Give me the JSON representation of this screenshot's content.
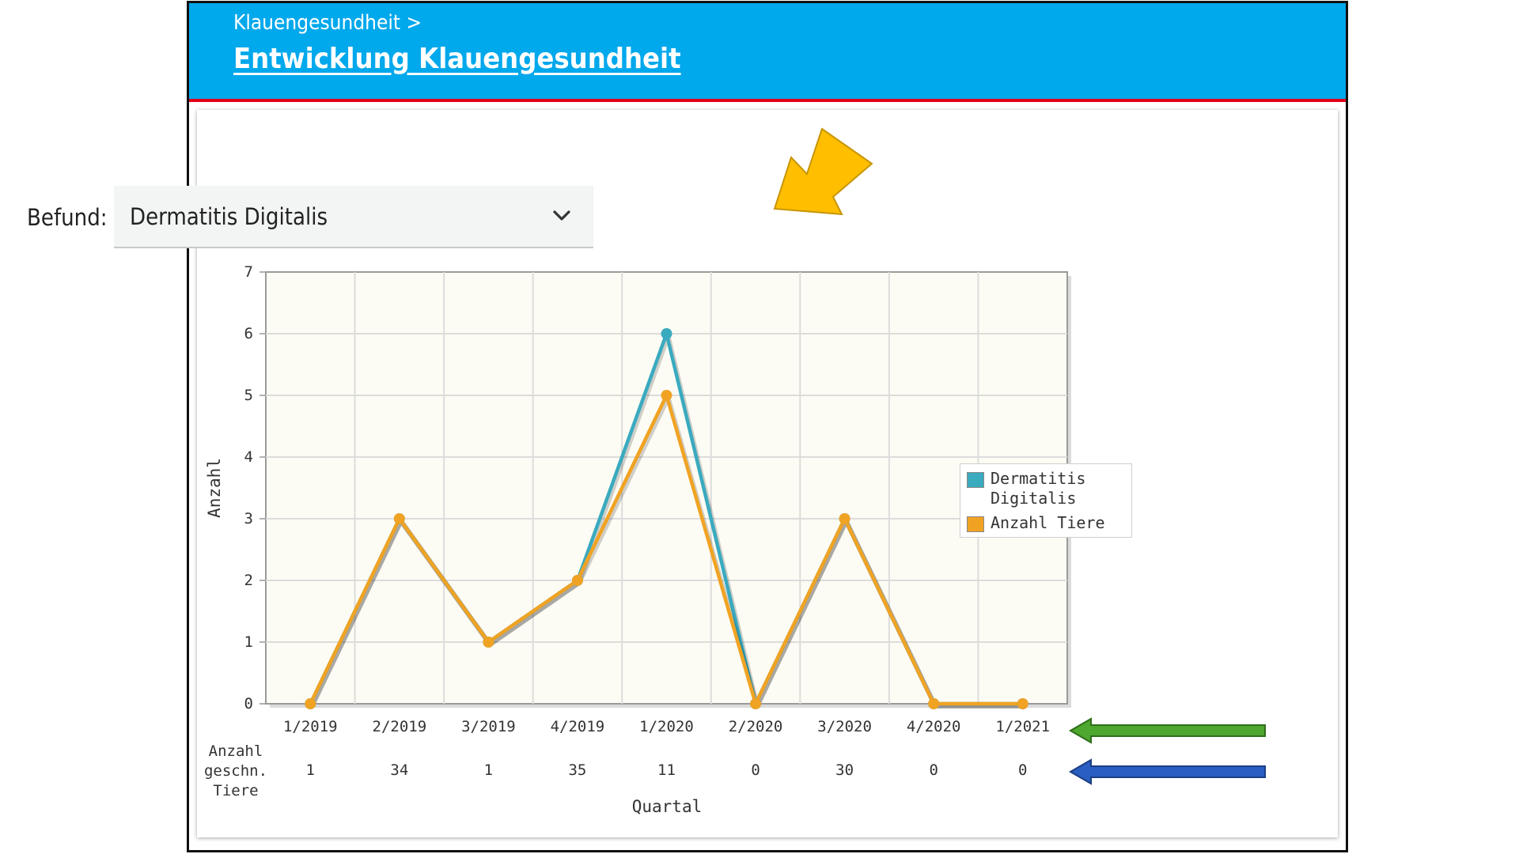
{
  "header": {
    "breadcrumb": "Klauengesundheit >",
    "title": "Entwicklung Klauengesundheit"
  },
  "filter": {
    "label": "Befund:",
    "selected": "Dermatitis Digitalis"
  },
  "colors": {
    "header_bg": "#00a8ec",
    "header_line": "#e2001a",
    "series_dd": "#3aaabf",
    "series_tiere": "#f0a323",
    "plot_bg": "#fdfcf4",
    "arrow_yellow": "#ffbf00",
    "arrow_green": "#4ea72e",
    "arrow_blue": "#2a5ec0"
  },
  "annotations": {
    "arrow_dropdown": "yellow-arrow",
    "arrow_quarters": "green-arrow",
    "arrow_counts": "blue-arrow"
  },
  "chart_data": {
    "type": "line",
    "xlabel": "Quartal",
    "ylabel": "Anzahl",
    "ylim": [
      0,
      7
    ],
    "yticks": [
      0,
      1,
      2,
      3,
      4,
      5,
      6,
      7
    ],
    "grid": true,
    "legend_position": "right",
    "categories": [
      "1/2019",
      "2/2019",
      "3/2019",
      "4/2019",
      "1/2020",
      "2/2020",
      "3/2020",
      "4/2020",
      "1/2021"
    ],
    "series": [
      {
        "name": "Dermatitis Digitalis",
        "color": "#3aaabf",
        "values": [
          0,
          3,
          1,
          2,
          6,
          0,
          3,
          0,
          0
        ]
      },
      {
        "name": "Anzahl Tiere",
        "color": "#f0a323",
        "values": [
          0,
          3,
          1,
          2,
          5,
          0,
          3,
          0,
          0
        ]
      }
    ],
    "table_row": {
      "label": "Anzahl geschn. Tiere",
      "values": [
        "1",
        "34",
        "1",
        "35",
        "11",
        "0",
        "30",
        "0",
        "0"
      ]
    }
  }
}
